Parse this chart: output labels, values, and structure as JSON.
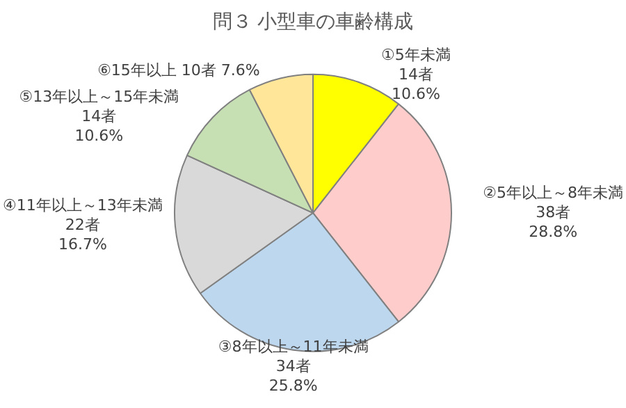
{
  "chart_data": {
    "type": "pie",
    "title": "問３ 小型車の車齢構成",
    "categories": [
      "①5年未満",
      "②5年以上～8年未満",
      "③8年以上～11年未満",
      "④11年以上～13年未満",
      "⑤13年以上～15年未満",
      "⑥15年以上"
    ],
    "values": [
      14,
      38,
      34,
      22,
      14,
      10
    ],
    "value_labels": [
      "14者 10.6%",
      "38者 28.8%",
      "34者 25.8%",
      "22者 16.7%",
      "14者 10.6%",
      "10者 7.6%"
    ],
    "colors": [
      "#ffff00",
      "#ffcccc",
      "#bdd7ee",
      "#d9d9d9",
      "#c6e0b4",
      "#ffe699"
    ],
    "legend": false
  }
}
